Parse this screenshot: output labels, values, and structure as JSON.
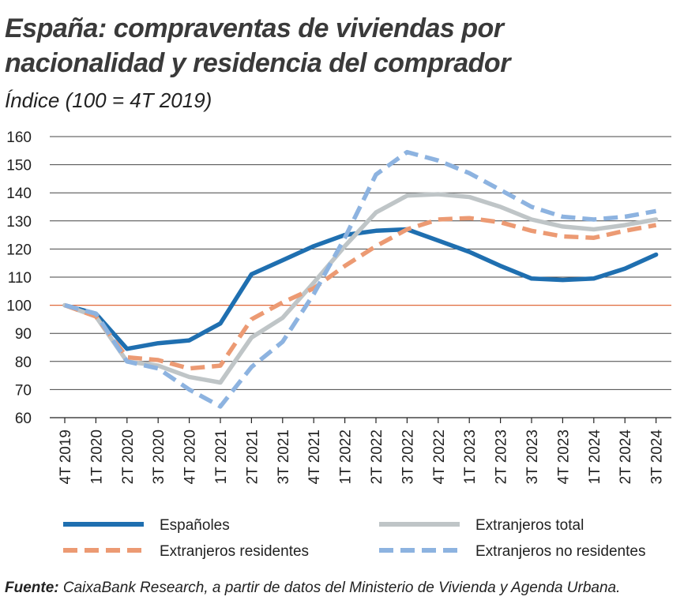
{
  "header": {
    "title_line1": "España: compraventas de viviendas por",
    "title_line2": "nacionalidad y residencia del comprador",
    "subtitle": "Índice (100 = 4T 2019)"
  },
  "footer": {
    "source_label": "Fuente:",
    "source_text": "CaixaBank Research, a partir de datos del Ministerio de Vivienda y Agenda Urbana."
  },
  "chart_data": {
    "type": "line",
    "title": "España: compraventas de viviendas por nacionalidad y residencia del comprador",
    "subtitle": "Índice (100 = 4T 2019)",
    "xlabel": "",
    "ylabel": "",
    "ylim": [
      60,
      160
    ],
    "yticks": [
      60,
      70,
      80,
      90,
      100,
      110,
      120,
      130,
      140,
      150,
      160
    ],
    "grid": "horizontal",
    "reference_line": 100,
    "reference_color": "#e06a3a",
    "legend_position": "bottom",
    "categories": [
      "4T 2019",
      "1T 2020",
      "2T 2020",
      "3T 2020",
      "4T 2020",
      "1T 2021",
      "2T 2021",
      "3T 2021",
      "4T 2021",
      "1T 2022",
      "2T 2022",
      "3T 2022",
      "4T 2022",
      "1T 2023",
      "2T 2023",
      "3T 2023",
      "4T 2023",
      "1T 2024",
      "2T 2024",
      "3T 2024"
    ],
    "series": [
      {
        "name": "Españoles",
        "color": "#1f6fb0",
        "dash": "solid",
        "values": [
          100,
          97,
          84.5,
          86.5,
          87.5,
          93.5,
          111,
          116,
          121,
          125,
          126.5,
          127,
          123,
          119,
          114,
          109.5,
          109,
          109.5,
          113,
          118
        ]
      },
      {
        "name": "Extranjeros total",
        "color": "#bfc5c7",
        "dash": "solid",
        "values": [
          100,
          96,
          80,
          78.5,
          74.5,
          72.5,
          88.5,
          95.5,
          108,
          121,
          133,
          139,
          139.5,
          138.5,
          135,
          130.5,
          128,
          127,
          128.5,
          130.5
        ]
      },
      {
        "name": "Extranjeros residentes",
        "color": "#ec9a73",
        "dash": "dashed",
        "values": [
          100,
          96,
          81.5,
          80.5,
          77.5,
          78.5,
          95,
          101,
          106,
          114,
          121,
          127,
          130.5,
          131,
          129.5,
          126.5,
          124.5,
          124,
          126.5,
          128.5
        ]
      },
      {
        "name": "Extranjeros no residentes",
        "color": "#8db3e0",
        "dash": "dashed",
        "values": [
          100,
          97,
          80,
          77.5,
          70,
          64,
          78,
          87,
          104,
          124,
          146.5,
          154.5,
          151.5,
          147,
          141,
          135,
          131.5,
          130.5,
          131.5,
          133.5
        ]
      }
    ]
  }
}
